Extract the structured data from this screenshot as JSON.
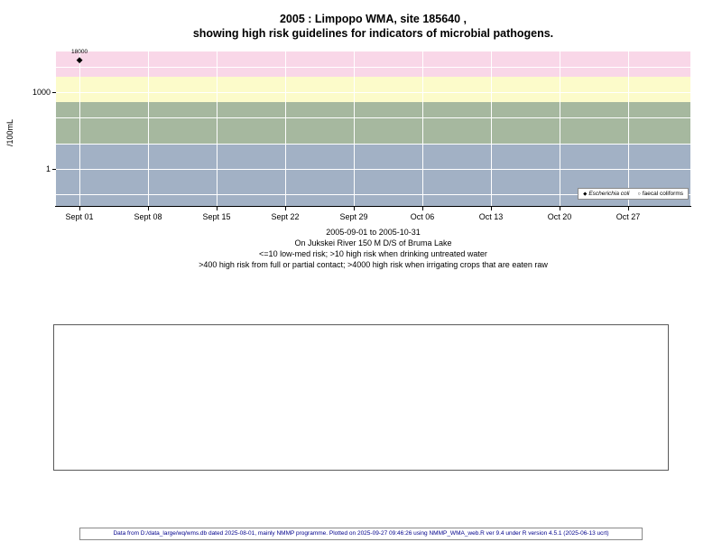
{
  "chart_data": {
    "type": "scatter",
    "title_lines": [
      "2005 : Limpopo WMA, site 185640 ,",
      "showing high risk guidelines for indicators of microbial pathogens."
    ],
    "ylabel": "/100mL",
    "yscale": "log",
    "ylim": [
      0.035,
      40000
    ],
    "xlim_days": [
      -2.4,
      62.4
    ],
    "grid": "on",
    "grid_color": "#ffffff",
    "legend_position": "bottom-right-inside",
    "xticks": [
      {
        "day": 0,
        "label": "Sept 01"
      },
      {
        "day": 7,
        "label": "Sept 08"
      },
      {
        "day": 14,
        "label": "Sept 15"
      },
      {
        "day": 21,
        "label": "Sept 22"
      },
      {
        "day": 28,
        "label": "Sept 29"
      },
      {
        "day": 35,
        "label": "Oct 06"
      },
      {
        "day": 42,
        "label": "Oct 13"
      },
      {
        "day": 49,
        "label": "Oct 20"
      },
      {
        "day": 56,
        "label": "Oct 27"
      }
    ],
    "yticks": [
      {
        "value": 1000,
        "label": "1000"
      },
      {
        "value": 1,
        "label": "1"
      }
    ],
    "gridlines_y": [
      10000,
      1000,
      100,
      10,
      1,
      0.1
    ],
    "bands": [
      {
        "name": "irrigation-high-risk",
        "range": ">4000",
        "from": 4000,
        "to": 40000,
        "color": "#f9d7e8"
      },
      {
        "name": "contact-high-risk",
        "range": "400-4000",
        "from": 400,
        "to": 4000,
        "color": "#fcfbca"
      },
      {
        "name": "drinking-high-risk",
        "range": "10-400",
        "from": 10,
        "to": 400,
        "color": "#a6b89f"
      },
      {
        "name": "low-med-risk",
        "range": "<=10",
        "from": 0.035,
        "to": 10,
        "color": "#a2b1c5"
      }
    ],
    "series": [
      {
        "name": "Escherichia coli",
        "marker": "filled-diamond",
        "marker_glyph": "◆",
        "points": [
          {
            "day": 0,
            "value": 18000,
            "label": "18000"
          }
        ]
      },
      {
        "name": "faecal coliforms",
        "marker": "open-circle",
        "marker_glyph": "○",
        "points": []
      }
    ],
    "caption_lines": [
      "2005-09-01 to 2005-10-31",
      "On Jukskei River 150 M D/S of Bruma Lake",
      "<=10 low-med risk; >10 high risk when drinking untreated water",
      ">400 high risk from full or partial contact; >4000 high risk when irrigating crops that are eaten raw"
    ]
  },
  "footer": {
    "text": "Data from D:/data_large/wq/wms.db dated 2025-08-01, mainly NMMP programme. Plotted on 2025-09-27 09:46:26 using NMMP_WMA_web.R ver 9.4 under R version 4.5.1 (2025-06-13 ucrt)"
  }
}
